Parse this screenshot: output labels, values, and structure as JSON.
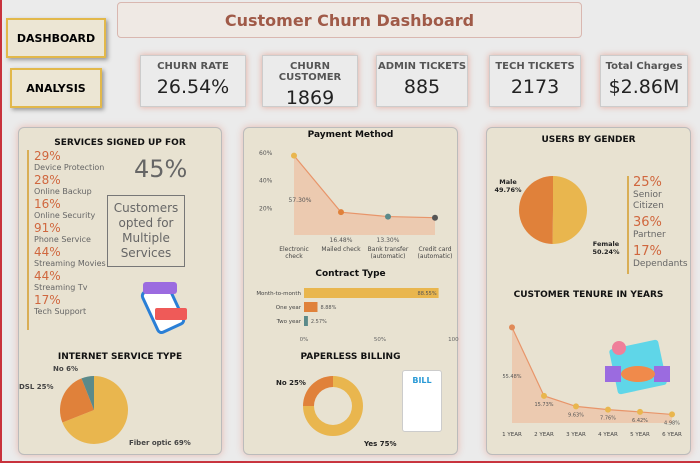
{
  "nav": {
    "dashboard": "DASHBOARD",
    "analysis": "ANALYSIS"
  },
  "header": {
    "title": "Customer Churn Dashboard"
  },
  "kpis": [
    {
      "label": "CHURN RATE",
      "value": "26.54%"
    },
    {
      "label": "CHURN CUSTOMER",
      "value": "1869"
    },
    {
      "label": "ADMIN TICKETS",
      "value": "885"
    },
    {
      "label": "TECH TICKETS",
      "value": "2173"
    },
    {
      "label": "Total Charges",
      "value": "$2.86M"
    }
  ],
  "services": {
    "title": "SERVICES SIGNED UP FOR",
    "items": [
      {
        "pct": "29%",
        "label": "Device Protection"
      },
      {
        "pct": "28%",
        "label": "Online Backup"
      },
      {
        "pct": "16%",
        "label": "Online Security"
      },
      {
        "pct": "91%",
        "label": "Phone Service"
      },
      {
        "pct": "44%",
        "label": "Streaming Movies"
      },
      {
        "pct": "44%",
        "label": "Streaming Tv"
      },
      {
        "pct": "17%",
        "label": "Tech Support"
      }
    ],
    "multi_pct": "45%",
    "multi_label": "Customers opted for Multiple Services"
  },
  "colors": {
    "yellow": "#e9b64e",
    "orange": "#e0813a",
    "teal": "#5b8a8a",
    "dark": "#555555",
    "fill": "#ecc4a8"
  },
  "chart_data": [
    {
      "type": "pie",
      "title": "INTERNET SERVICE TYPE",
      "labels": [
        "Fiber optic",
        "DSL",
        "No"
      ],
      "values": [
        69,
        25,
        6
      ],
      "label_text": [
        "Fiber optic 69%",
        "DSL 25%",
        "No 6%"
      ]
    },
    {
      "type": "area",
      "title": "Payment Method",
      "categories": [
        "Electronic check",
        "Mailed check",
        "Bank transfer (automatic)",
        "Credit card (automatic)"
      ],
      "values": [
        57.3,
        16.48,
        13.3,
        12.5
      ],
      "data_labels": [
        "57.30%",
        "16.48%",
        "13.30%",
        ""
      ],
      "yticks": [
        "60%",
        "40%",
        "20%"
      ],
      "ylim": [
        0,
        65
      ]
    },
    {
      "type": "bar",
      "title": "Contract Type",
      "categories": [
        "Month-to-month",
        "One year",
        "Two year"
      ],
      "values": [
        88.55,
        8.88,
        2.57
      ],
      "data_labels": [
        "88.55%",
        "8.88%",
        "2.57%"
      ],
      "xticks": [
        "0%",
        "50%",
        "100%"
      ],
      "xlim": [
        0,
        100
      ]
    },
    {
      "type": "pie",
      "title": "PAPERLESS BILLING",
      "labels": [
        "Yes",
        "No"
      ],
      "values": [
        75,
        25
      ],
      "label_text": [
        "Yes 75%",
        "No 25%"
      ]
    },
    {
      "type": "pie",
      "title": "USERS BY GENDER",
      "labels": [
        "Female",
        "Male"
      ],
      "values": [
        50.24,
        49.76
      ],
      "label_text": [
        "Female 50.24%",
        "Male 49.76%"
      ]
    },
    {
      "type": "area",
      "title": "CUSTOMER TENURE IN YEARS",
      "categories": [
        "1 YEAR",
        "2 YEAR",
        "3 YEAR",
        "4 YEAR",
        "5 YEAR",
        "6 YEAR"
      ],
      "values": [
        55.48,
        15.73,
        9.63,
        7.76,
        6.42,
        4.98
      ],
      "data_labels": [
        "55.48%",
        "15.73%",
        "9.63%",
        "7.76%",
        "6.42%",
        "4.98%"
      ],
      "ylim": [
        0,
        58
      ]
    }
  ],
  "demographics": [
    {
      "pct": "25%",
      "label": "Senior Citizen"
    },
    {
      "pct": "36%",
      "label": "Partner"
    },
    {
      "pct": "17%",
      "label": "Dependants"
    }
  ],
  "bill_icon": "BILL"
}
